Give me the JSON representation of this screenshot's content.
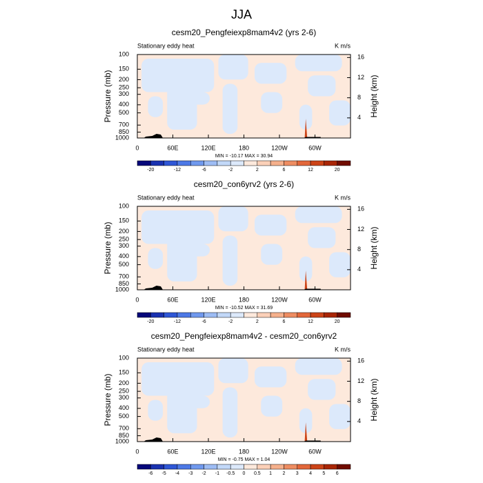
{
  "title": "JJA",
  "chart_data": [
    {
      "type": "contour",
      "title": "cesm20_Pengfeiexp8mam4v2 (yrs 2-6)",
      "left_string": "Stationary eddy heat",
      "right_string": "K m/s",
      "ylabel": "Pressure (mb)",
      "y2label": "Height (km)",
      "stats": "MIN = -10.17  MAX = 30.94",
      "xlim": [
        0,
        360
      ],
      "xticks": [
        0,
        {
          "value": 60,
          "label": "60E"
        },
        {
          "value": 120,
          "label": "120E"
        },
        180,
        {
          "value": 240,
          "label": "120W"
        },
        {
          "value": 300,
          "label": "60W"
        }
      ],
      "ylim": [
        1000,
        100
      ],
      "log_y": true,
      "yticks": [
        100,
        150,
        200,
        250,
        300,
        400,
        500,
        700,
        850,
        1000
      ],
      "y2lim": [
        0,
        16.6
      ],
      "y2ticks": [
        4,
        8,
        12,
        16
      ],
      "colorbar": {
        "levels": [
          -20,
          -12,
          -6,
          -2,
          2,
          6,
          12,
          20
        ],
        "label_every": 2,
        "colors": [
          "#05087a",
          "#1a32b0",
          "#2f57d6",
          "#4d79e6",
          "#7099ee",
          "#9dbcf4",
          "#c2d8f8",
          "#dce9fb",
          "#fde9dc",
          "#fbd0b8",
          "#f5b08c",
          "#ee8d62",
          "#e2673a",
          "#cc4418",
          "#a92606",
          "#700c00"
        ]
      }
    },
    {
      "type": "contour",
      "title": "cesm20_con6yrv2 (yrs 2-6)",
      "left_string": "Stationary eddy heat",
      "right_string": "K m/s",
      "ylabel": "Pressure (mb)",
      "y2label": "Height (km)",
      "stats": "MIN = -10.52  MAX = 31.69",
      "xlim": [
        0,
        360
      ],
      "xticks": [
        0,
        {
          "value": 60,
          "label": "60E"
        },
        {
          "value": 120,
          "label": "120E"
        },
        180,
        {
          "value": 240,
          "label": "120W"
        },
        {
          "value": 300,
          "label": "60W"
        }
      ],
      "ylim": [
        1000,
        100
      ],
      "log_y": true,
      "yticks": [
        100,
        150,
        200,
        250,
        300,
        400,
        500,
        700,
        850,
        1000
      ],
      "y2lim": [
        0,
        16.6
      ],
      "y2ticks": [
        4,
        8,
        12,
        16
      ],
      "colorbar": {
        "levels": [
          -20,
          -12,
          -6,
          -2,
          2,
          6,
          12,
          20
        ],
        "label_every": 2,
        "colors": [
          "#05087a",
          "#1a32b0",
          "#2f57d6",
          "#4d79e6",
          "#7099ee",
          "#9dbcf4",
          "#c2d8f8",
          "#dce9fb",
          "#fde9dc",
          "#fbd0b8",
          "#f5b08c",
          "#ee8d62",
          "#e2673a",
          "#cc4418",
          "#a92606",
          "#700c00"
        ]
      }
    },
    {
      "type": "contour",
      "title": "cesm20_Pengfeiexp8mam4v2 - cesm20_con6yrv2",
      "left_string": "Stationary eddy heat",
      "right_string": "K m/s",
      "ylabel": "Pressure (mb)",
      "y2label": "Height (km)",
      "stats": "MIN = -0.75  MAX = 1.04",
      "xlim": [
        0,
        360
      ],
      "xticks": [
        0,
        {
          "value": 60,
          "label": "60E"
        },
        {
          "value": 120,
          "label": "120E"
        },
        180,
        {
          "value": 240,
          "label": "120W"
        },
        {
          "value": 300,
          "label": "60W"
        }
      ],
      "ylim": [
        1000,
        100
      ],
      "log_y": true,
      "yticks": [
        100,
        150,
        200,
        250,
        300,
        400,
        500,
        700,
        850,
        1000
      ],
      "y2lim": [
        0,
        16.6
      ],
      "y2ticks": [
        4,
        8,
        12,
        16
      ],
      "colorbar": {
        "levels": [
          -6,
          -5,
          -4,
          -3,
          -2,
          -1,
          -0.5,
          0,
          0.5,
          1,
          2,
          3,
          4,
          5,
          6
        ],
        "label_every": 1,
        "colors": [
          "#05087a",
          "#1a32b0",
          "#2f57d6",
          "#4d79e6",
          "#7099ee",
          "#9dbcf4",
          "#c2d8f8",
          "#dce9fb",
          "#fde9dc",
          "#fbd0b8",
          "#f5b08c",
          "#ee8d62",
          "#e2673a",
          "#cc4418",
          "#a92606",
          "#700c00"
        ]
      }
    }
  ]
}
